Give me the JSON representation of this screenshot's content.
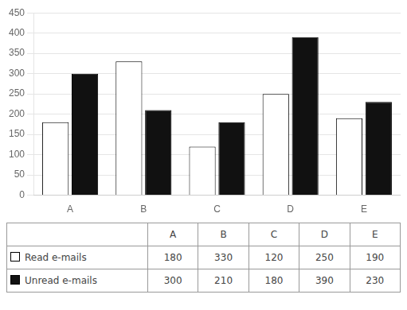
{
  "chart_data": {
    "type": "bar",
    "categories": [
      "A",
      "B",
      "C",
      "D",
      "E"
    ],
    "series": [
      {
        "name": "Read e-mails",
        "color": "#ffffff",
        "values": [
          180,
          330,
          120,
          250,
          190
        ]
      },
      {
        "name": "Unread e-mails",
        "color": "#111111",
        "values": [
          300,
          210,
          180,
          390,
          230
        ]
      }
    ],
    "ylim": [
      0,
      450
    ],
    "yticks": [
      0,
      50,
      100,
      150,
      200,
      250,
      300,
      350,
      400,
      450
    ],
    "grid": true
  }
}
